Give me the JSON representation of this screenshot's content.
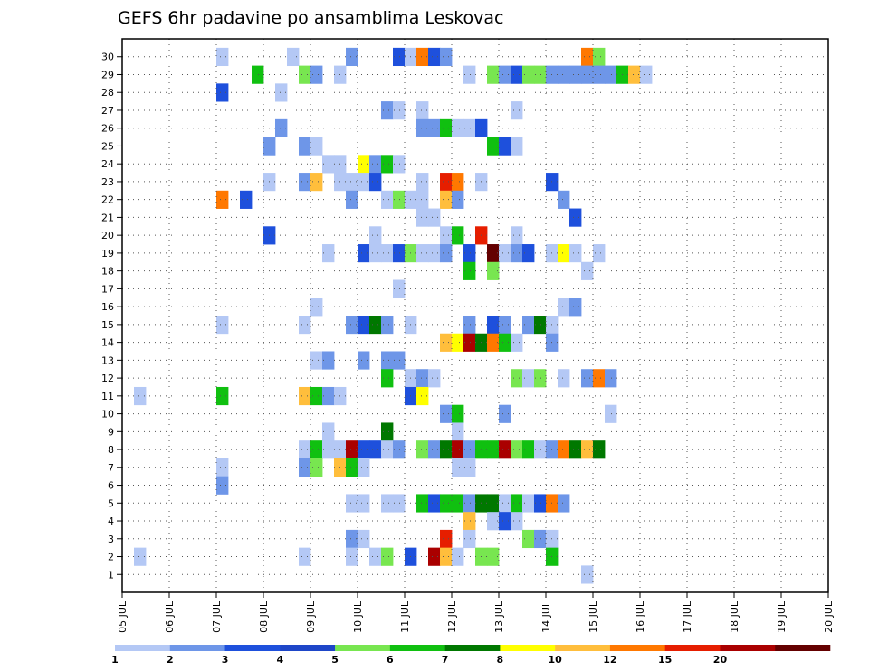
{
  "chart_data": {
    "type": "heatmap",
    "title": "GEFS 6hr padavine po ansamblima Leskovac",
    "xlabel": "",
    "ylabel": "",
    "x_ticks": [
      "05 JUL",
      "06 JUL",
      "07 JUL",
      "08 JUL",
      "09 JUL",
      "10 JUL",
      "11 JUL",
      "12 JUL",
      "13 JUL",
      "14 JUL",
      "15 JUL",
      "16 JUL",
      "17 JUL",
      "18 JUL",
      "19 JUL",
      "20 JUL"
    ],
    "y_ticks": [
      "1",
      "2",
      "3",
      "4",
      "5",
      "6",
      "7",
      "8",
      "9",
      "10",
      "11",
      "12",
      "13",
      "14",
      "15",
      "16",
      "17",
      "18",
      "19",
      "20",
      "21",
      "22",
      "23",
      "24",
      "25",
      "26",
      "27",
      "28",
      "29",
      "30"
    ],
    "steps_per_day": 4,
    "grid": true,
    "colorbar": {
      "labels": [
        "1",
        "2",
        "3",
        "4",
        "5",
        "6",
        "7",
        "8",
        "10",
        "12",
        "15",
        "20"
      ],
      "colors": [
        "#b4c8f5",
        "#6e96e8",
        "#1e50dc",
        "#1e46c8",
        "#78e650",
        "#10c010",
        "#007800",
        "#ffff00",
        "#ffbe3c",
        "#ff7800",
        "#e61e00",
        "#aa0000",
        "#640000"
      ]
    },
    "cells": [
      [
        8,
        30,
        0
      ],
      [
        14,
        30,
        0
      ],
      [
        19,
        30,
        1
      ],
      [
        23,
        30,
        2
      ],
      [
        24,
        30,
        0
      ],
      [
        25,
        30,
        9
      ],
      [
        26,
        30,
        2
      ],
      [
        27,
        30,
        1
      ],
      [
        39,
        30,
        9
      ],
      [
        40,
        30,
        4
      ],
      [
        11,
        29,
        5
      ],
      [
        15,
        29,
        4
      ],
      [
        16,
        29,
        1
      ],
      [
        18,
        29,
        0
      ],
      [
        29,
        29,
        0
      ],
      [
        31,
        29,
        4
      ],
      [
        32,
        29,
        1
      ],
      [
        33,
        29,
        2
      ],
      [
        34,
        29,
        4
      ],
      [
        35,
        29,
        4
      ],
      [
        36,
        29,
        1
      ],
      [
        37,
        29,
        1
      ],
      [
        38,
        29,
        1
      ],
      [
        39,
        29,
        1
      ],
      [
        40,
        29,
        1
      ],
      [
        41,
        29,
        1
      ],
      [
        42,
        29,
        5
      ],
      [
        43,
        29,
        8
      ],
      [
        44,
        29,
        0
      ],
      [
        8,
        28,
        2
      ],
      [
        13,
        28,
        0
      ],
      [
        22,
        27,
        1
      ],
      [
        23,
        27,
        0
      ],
      [
        25,
        27,
        0
      ],
      [
        33,
        27,
        0
      ],
      [
        13,
        26,
        1
      ],
      [
        25,
        26,
        1
      ],
      [
        26,
        26,
        1
      ],
      [
        27,
        26,
        5
      ],
      [
        28,
        26,
        0
      ],
      [
        29,
        26,
        0
      ],
      [
        30,
        26,
        2
      ],
      [
        12,
        25,
        1
      ],
      [
        15,
        25,
        1
      ],
      [
        16,
        25,
        0
      ],
      [
        31,
        25,
        5
      ],
      [
        32,
        25,
        2
      ],
      [
        33,
        25,
        0
      ],
      [
        17,
        24,
        0
      ],
      [
        18,
        24,
        0
      ],
      [
        20,
        24,
        7
      ],
      [
        21,
        24,
        1
      ],
      [
        22,
        24,
        5
      ],
      [
        23,
        24,
        0
      ],
      [
        12,
        23,
        0
      ],
      [
        15,
        23,
        1
      ],
      [
        16,
        23,
        8
      ],
      [
        18,
        23,
        0
      ],
      [
        19,
        23,
        0
      ],
      [
        20,
        23,
        0
      ],
      [
        21,
        23,
        2
      ],
      [
        25,
        23,
        0
      ],
      [
        27,
        23,
        10
      ],
      [
        28,
        23,
        9
      ],
      [
        30,
        23,
        0
      ],
      [
        36,
        23,
        2
      ],
      [
        8,
        22,
        9
      ],
      [
        10,
        22,
        2
      ],
      [
        19,
        22,
        1
      ],
      [
        22,
        22,
        0
      ],
      [
        23,
        22,
        4
      ],
      [
        24,
        22,
        0
      ],
      [
        25,
        22,
        0
      ],
      [
        27,
        22,
        8
      ],
      [
        28,
        22,
        1
      ],
      [
        37,
        22,
        1
      ],
      [
        25,
        21,
        0
      ],
      [
        26,
        21,
        0
      ],
      [
        38,
        21,
        2
      ],
      [
        12,
        20,
        2
      ],
      [
        21,
        20,
        0
      ],
      [
        27,
        20,
        0
      ],
      [
        28,
        20,
        5
      ],
      [
        30,
        20,
        10
      ],
      [
        33,
        20,
        0
      ],
      [
        17,
        19,
        0
      ],
      [
        20,
        19,
        2
      ],
      [
        21,
        19,
        0
      ],
      [
        22,
        19,
        0
      ],
      [
        23,
        19,
        2
      ],
      [
        24,
        19,
        4
      ],
      [
        25,
        19,
        0
      ],
      [
        26,
        19,
        0
      ],
      [
        27,
        19,
        1
      ],
      [
        29,
        19,
        2
      ],
      [
        31,
        19,
        12
      ],
      [
        32,
        19,
        0
      ],
      [
        33,
        19,
        1
      ],
      [
        34,
        19,
        2
      ],
      [
        36,
        19,
        0
      ],
      [
        37,
        19,
        7
      ],
      [
        38,
        19,
        0
      ],
      [
        40,
        19,
        0
      ],
      [
        29,
        18,
        5
      ],
      [
        31,
        18,
        4
      ],
      [
        39,
        18,
        0
      ],
      [
        23,
        17,
        0
      ],
      [
        16,
        16,
        0
      ],
      [
        37,
        16,
        0
      ],
      [
        38,
        16,
        1
      ],
      [
        8,
        15,
        0
      ],
      [
        15,
        15,
        0
      ],
      [
        19,
        15,
        1
      ],
      [
        20,
        15,
        2
      ],
      [
        21,
        15,
        6
      ],
      [
        22,
        15,
        1
      ],
      [
        24,
        15,
        0
      ],
      [
        29,
        15,
        1
      ],
      [
        31,
        15,
        2
      ],
      [
        32,
        15,
        1
      ],
      [
        34,
        15,
        1
      ],
      [
        35,
        15,
        6
      ],
      [
        36,
        15,
        0
      ],
      [
        27,
        14,
        8
      ],
      [
        28,
        14,
        7
      ],
      [
        29,
        14,
        11
      ],
      [
        30,
        14,
        6
      ],
      [
        31,
        14,
        9
      ],
      [
        32,
        14,
        5
      ],
      [
        33,
        14,
        0
      ],
      [
        36,
        14,
        1
      ],
      [
        16,
        13,
        0
      ],
      [
        17,
        13,
        1
      ],
      [
        20,
        13,
        1
      ],
      [
        22,
        13,
        1
      ],
      [
        23,
        13,
        1
      ],
      [
        22,
        12,
        5
      ],
      [
        24,
        12,
        0
      ],
      [
        25,
        12,
        1
      ],
      [
        26,
        12,
        0
      ],
      [
        33,
        12,
        4
      ],
      [
        34,
        12,
        0
      ],
      [
        35,
        12,
        4
      ],
      [
        37,
        12,
        0
      ],
      [
        39,
        12,
        1
      ],
      [
        40,
        12,
        9
      ],
      [
        41,
        12,
        1
      ],
      [
        1,
        11,
        0
      ],
      [
        8,
        11,
        5
      ],
      [
        15,
        11,
        8
      ],
      [
        16,
        11,
        5
      ],
      [
        17,
        11,
        1
      ],
      [
        18,
        11,
        0
      ],
      [
        24,
        11,
        2
      ],
      [
        25,
        11,
        7
      ],
      [
        27,
        10,
        1
      ],
      [
        28,
        10,
        5
      ],
      [
        32,
        10,
        1
      ],
      [
        41,
        10,
        0
      ],
      [
        17,
        9,
        0
      ],
      [
        22,
        9,
        6
      ],
      [
        28,
        9,
        0
      ],
      [
        15,
        8,
        0
      ],
      [
        16,
        8,
        5
      ],
      [
        17,
        8,
        0
      ],
      [
        18,
        8,
        0
      ],
      [
        19,
        8,
        11
      ],
      [
        20,
        8,
        2
      ],
      [
        21,
        8,
        2
      ],
      [
        22,
        8,
        0
      ],
      [
        23,
        8,
        1
      ],
      [
        25,
        8,
        4
      ],
      [
        26,
        8,
        1
      ],
      [
        27,
        8,
        6
      ],
      [
        28,
        8,
        11
      ],
      [
        29,
        8,
        1
      ],
      [
        30,
        8,
        5
      ],
      [
        31,
        8,
        5
      ],
      [
        32,
        8,
        11
      ],
      [
        33,
        8,
        4
      ],
      [
        34,
        8,
        5
      ],
      [
        35,
        8,
        0
      ],
      [
        36,
        8,
        1
      ],
      [
        37,
        8,
        9
      ],
      [
        38,
        8,
        6
      ],
      [
        39,
        8,
        8
      ],
      [
        40,
        8,
        6
      ],
      [
        8,
        7,
        0
      ],
      [
        15,
        7,
        1
      ],
      [
        16,
        7,
        4
      ],
      [
        18,
        7,
        8
      ],
      [
        19,
        7,
        5
      ],
      [
        20,
        7,
        0
      ],
      [
        28,
        7,
        0
      ],
      [
        29,
        7,
        0
      ],
      [
        8,
        6,
        1
      ],
      [
        19,
        5,
        0
      ],
      [
        20,
        5,
        0
      ],
      [
        22,
        5,
        0
      ],
      [
        23,
        5,
        0
      ],
      [
        25,
        5,
        5
      ],
      [
        26,
        5,
        2
      ],
      [
        27,
        5,
        5
      ],
      [
        28,
        5,
        5
      ],
      [
        29,
        5,
        1
      ],
      [
        30,
        5,
        6
      ],
      [
        31,
        5,
        6
      ],
      [
        32,
        5,
        0
      ],
      [
        33,
        5,
        5
      ],
      [
        34,
        5,
        0
      ],
      [
        35,
        5,
        2
      ],
      [
        36,
        5,
        9
      ],
      [
        37,
        5,
        1
      ],
      [
        29,
        4,
        8
      ],
      [
        31,
        4,
        0
      ],
      [
        32,
        4,
        2
      ],
      [
        33,
        4,
        0
      ],
      [
        19,
        3,
        1
      ],
      [
        20,
        3,
        0
      ],
      [
        27,
        3,
        10
      ],
      [
        29,
        3,
        0
      ],
      [
        34,
        3,
        4
      ],
      [
        35,
        3,
        1
      ],
      [
        36,
        3,
        0
      ],
      [
        1,
        2,
        0
      ],
      [
        15,
        2,
        0
      ],
      [
        19,
        2,
        0
      ],
      [
        21,
        2,
        0
      ],
      [
        22,
        2,
        4
      ],
      [
        24,
        2,
        2
      ],
      [
        26,
        2,
        11
      ],
      [
        27,
        2,
        8
      ],
      [
        28,
        2,
        0
      ],
      [
        30,
        2,
        4
      ],
      [
        31,
        2,
        4
      ],
      [
        36,
        2,
        5
      ],
      [
        39,
        1,
        0
      ]
    ]
  }
}
